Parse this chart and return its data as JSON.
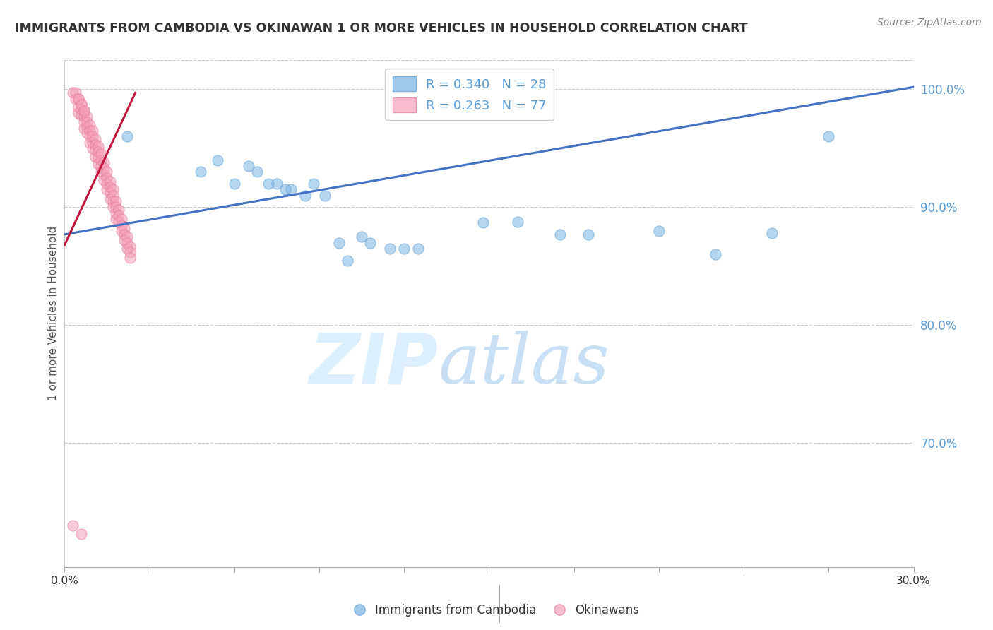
{
  "title": "IMMIGRANTS FROM CAMBODIA VS OKINAWAN 1 OR MORE VEHICLES IN HOUSEHOLD CORRELATION CHART",
  "source": "Source: ZipAtlas.com",
  "ylabel": "1 or more Vehicles in Household",
  "ytick_values": [
    1.0,
    0.9,
    0.8,
    0.7
  ],
  "xmin": 0.0,
  "xmax": 0.3,
  "ymin": 0.595,
  "ymax": 1.025,
  "watermark_zip": "ZIP",
  "watermark_atlas": "atlas",
  "legend_label_blue": "Immigrants from Cambodia",
  "legend_label_pink": "Okinawans",
  "blue_scatter": [
    [
      0.022,
      0.96
    ],
    [
      0.048,
      0.93
    ],
    [
      0.054,
      0.94
    ],
    [
      0.06,
      0.92
    ],
    [
      0.065,
      0.935
    ],
    [
      0.068,
      0.93
    ],
    [
      0.072,
      0.92
    ],
    [
      0.075,
      0.92
    ],
    [
      0.08,
      0.915
    ],
    [
      0.085,
      0.91
    ],
    [
      0.088,
      0.92
    ],
    [
      0.092,
      0.91
    ],
    [
      0.097,
      0.87
    ],
    [
      0.1,
      0.855
    ],
    [
      0.105,
      0.875
    ],
    [
      0.108,
      0.87
    ],
    [
      0.115,
      0.865
    ],
    [
      0.12,
      0.865
    ],
    [
      0.125,
      0.865
    ],
    [
      0.148,
      0.887
    ],
    [
      0.16,
      0.888
    ],
    [
      0.175,
      0.877
    ],
    [
      0.185,
      0.877
    ],
    [
      0.21,
      0.88
    ],
    [
      0.23,
      0.86
    ],
    [
      0.25,
      0.878
    ],
    [
      0.27,
      0.96
    ],
    [
      0.078,
      0.915
    ]
  ],
  "pink_scatter": [
    [
      0.003,
      0.997
    ],
    [
      0.004,
      0.992
    ],
    [
      0.005,
      0.992
    ],
    [
      0.005,
      0.985
    ],
    [
      0.005,
      0.98
    ],
    [
      0.006,
      0.988
    ],
    [
      0.006,
      0.983
    ],
    [
      0.006,
      0.978
    ],
    [
      0.007,
      0.982
    ],
    [
      0.007,
      0.977
    ],
    [
      0.007,
      0.972
    ],
    [
      0.007,
      0.967
    ],
    [
      0.008,
      0.977
    ],
    [
      0.008,
      0.972
    ],
    [
      0.008,
      0.968
    ],
    [
      0.008,
      0.963
    ],
    [
      0.009,
      0.97
    ],
    [
      0.009,
      0.965
    ],
    [
      0.009,
      0.96
    ],
    [
      0.009,
      0.955
    ],
    [
      0.01,
      0.965
    ],
    [
      0.01,
      0.96
    ],
    [
      0.01,
      0.955
    ],
    [
      0.01,
      0.95
    ],
    [
      0.011,
      0.958
    ],
    [
      0.011,
      0.953
    ],
    [
      0.011,
      0.948
    ],
    [
      0.011,
      0.943
    ],
    [
      0.012,
      0.952
    ],
    [
      0.012,
      0.947
    ],
    [
      0.012,
      0.942
    ],
    [
      0.012,
      0.937
    ],
    [
      0.013,
      0.945
    ],
    [
      0.013,
      0.94
    ],
    [
      0.013,
      0.935
    ],
    [
      0.013,
      0.93
    ],
    [
      0.014,
      0.938
    ],
    [
      0.014,
      0.933
    ],
    [
      0.014,
      0.928
    ],
    [
      0.014,
      0.923
    ],
    [
      0.015,
      0.93
    ],
    [
      0.015,
      0.925
    ],
    [
      0.015,
      0.92
    ],
    [
      0.015,
      0.915
    ],
    [
      0.016,
      0.922
    ],
    [
      0.016,
      0.917
    ],
    [
      0.016,
      0.912
    ],
    [
      0.016,
      0.907
    ],
    [
      0.017,
      0.915
    ],
    [
      0.017,
      0.91
    ],
    [
      0.017,
      0.905
    ],
    [
      0.017,
      0.9
    ],
    [
      0.018,
      0.905
    ],
    [
      0.018,
      0.9
    ],
    [
      0.018,
      0.895
    ],
    [
      0.018,
      0.89
    ],
    [
      0.019,
      0.898
    ],
    [
      0.019,
      0.893
    ],
    [
      0.019,
      0.888
    ],
    [
      0.02,
      0.89
    ],
    [
      0.02,
      0.885
    ],
    [
      0.02,
      0.88
    ],
    [
      0.021,
      0.882
    ],
    [
      0.021,
      0.877
    ],
    [
      0.021,
      0.872
    ],
    [
      0.022,
      0.875
    ],
    [
      0.022,
      0.87
    ],
    [
      0.022,
      0.865
    ],
    [
      0.023,
      0.867
    ],
    [
      0.023,
      0.862
    ],
    [
      0.023,
      0.857
    ],
    [
      0.003,
      0.63
    ],
    [
      0.006,
      0.623
    ],
    [
      0.004,
      0.997
    ],
    [
      0.005,
      0.992
    ],
    [
      0.006,
      0.987
    ],
    [
      0.007,
      0.982
    ]
  ],
  "blue_line_x": [
    0.0,
    0.3
  ],
  "blue_line_y": [
    0.877,
    1.002
  ],
  "pink_line_x": [
    0.0,
    0.025
  ],
  "pink_line_y": [
    0.868,
    0.997
  ],
  "blue_color": "#7ab3e0",
  "blue_edge_color": "#5b9bd5",
  "pink_color": "#f4a0b8",
  "pink_edge_color": "#e8799a",
  "blue_line_color": "#4472C4",
  "pink_line_color": "#C0143C",
  "grid_color": "#cccccc",
  "title_color": "#333333",
  "right_axis_color": "#5b9bd5",
  "watermark_color": "#ddeeff",
  "background_color": "#ffffff"
}
